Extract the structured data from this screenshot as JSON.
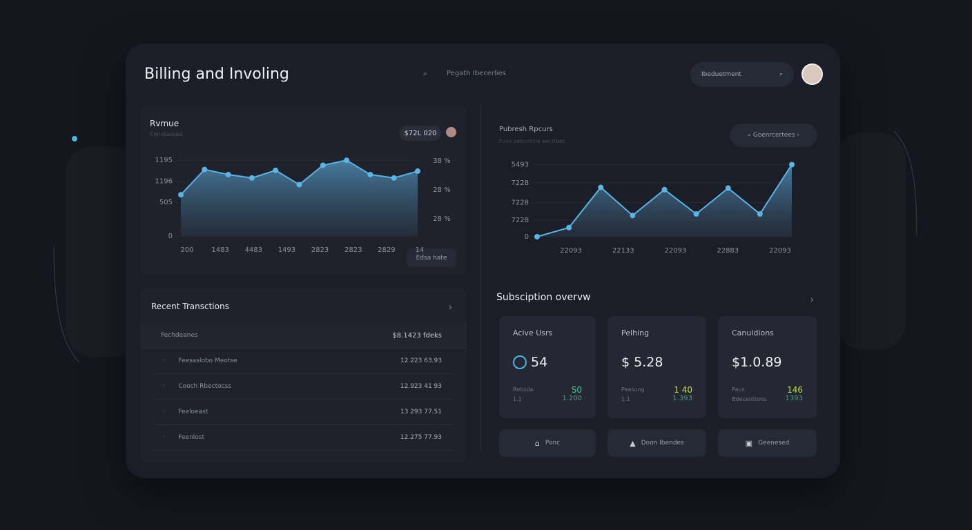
{
  "header": {
    "title": "Billing and Involing",
    "search_placeholder": "Pegath Ibecerlies",
    "action": "Ibeduetment"
  },
  "revenue_chart": {
    "type": "area",
    "title": "Rvmue",
    "subtitle": "Cenotasbed",
    "badge": "$72L 020",
    "values": [
      49,
      79,
      73,
      69,
      78,
      61,
      84,
      90,
      73,
      69,
      77
    ],
    "ylim": [
      0,
      100
    ],
    "yticks": [
      {
        "value": 90,
        "label": "1195"
      },
      {
        "value": 65,
        "label": "1196"
      },
      {
        "value": 40,
        "label": "505"
      },
      0
    ],
    "x_axis_labels": [
      "200",
      "1483",
      "4483",
      "1493",
      "2823",
      "2823",
      "2829",
      "14"
    ],
    "right_labels": [
      "38 %",
      "28 %",
      "28 %"
    ],
    "button": "Edsa hate",
    "color": "#5ab4e6"
  },
  "reports_chart": {
    "type": "area",
    "title": "Pubresh Rpcurs",
    "subtitle": "Fuvs sebcontia aecribes",
    "button": "Goenrcertees",
    "values": [
      0,
      12,
      65,
      28,
      62,
      30,
      64,
      30,
      95
    ],
    "ylim": [
      0,
      100
    ],
    "yticks": [
      {
        "value": 95,
        "label": "5493"
      },
      {
        "value": 71,
        "label": "7228"
      },
      {
        "value": 45,
        "label": "7228"
      },
      {
        "value": 22,
        "label": "7228"
      },
      0
    ],
    "x_axis_labels": [
      "22093",
      "22133",
      "22093",
      "22883",
      "22093"
    ],
    "color": "#5ab4e6"
  },
  "transactions": {
    "title": "Recent Transctions",
    "header": [
      "Fechdeanes",
      "$8.1423 fdeks"
    ],
    "rows": [
      [
        "Feesaslobo Meotse",
        "12.223 63.93"
      ],
      [
        "Cooch Rbectocss",
        "12.923 41 93"
      ],
      [
        "Feeloeast",
        "13 293 77.51"
      ],
      [
        "Feenlost",
        "12.275 77.93"
      ]
    ]
  },
  "subscription": {
    "title": "Subsciption overvw",
    "cards": [
      {
        "label": "Acive Usrs",
        "value": "54",
        "rows": [
          [
            "Rebsda",
            "S0"
          ],
          [
            "1.1",
            "1.200"
          ]
        ]
      },
      {
        "label": "Pelhing",
        "value": "$ 5.28",
        "rows": [
          [
            "Peasong",
            "1 40"
          ],
          [
            "1.1",
            "1.393"
          ]
        ]
      },
      {
        "label": "Canuldions",
        "value": "$1.0.89",
        "rows": [
          [
            "Paus",
            "146"
          ],
          [
            "Bdecenttons",
            "1393"
          ]
        ]
      }
    ],
    "buttons": [
      "Ponc",
      "Doon Ibendes",
      "Geenesed"
    ]
  }
}
